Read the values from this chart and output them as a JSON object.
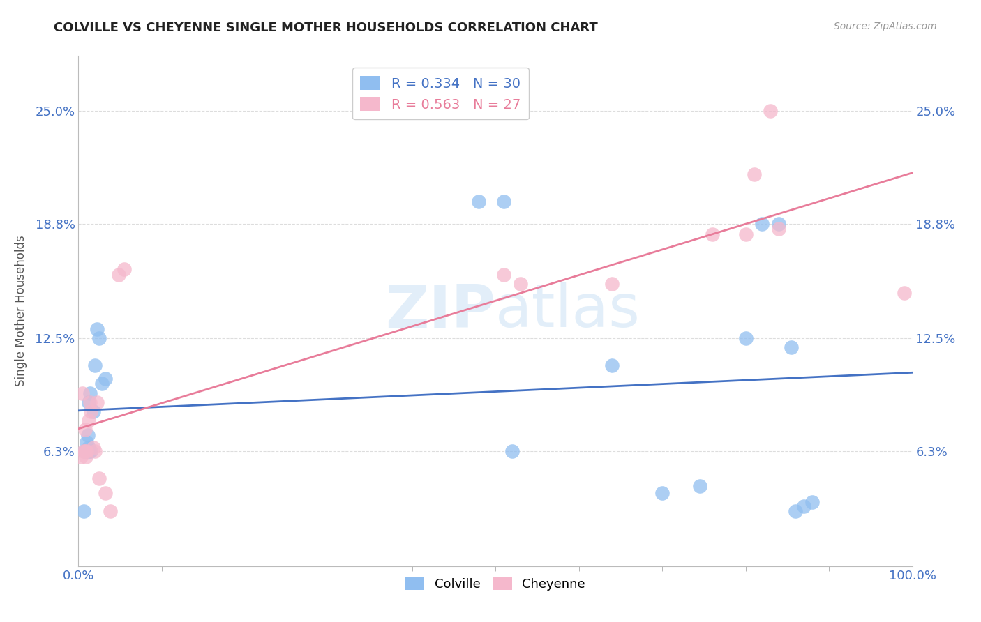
{
  "title": "COLVILLE VS CHEYENNE SINGLE MOTHER HOUSEHOLDS CORRELATION CHART",
  "source": "Source: ZipAtlas.com",
  "ylabel": "Single Mother Households",
  "xlim": [
    0.0,
    1.0
  ],
  "ylim": [
    0.0,
    0.28
  ],
  "y_ticks": [
    0.063,
    0.125,
    0.188,
    0.25
  ],
  "y_tick_labels": [
    "6.3%",
    "12.5%",
    "18.8%",
    "25.0%"
  ],
  "x_tick_labels_left": "0.0%",
  "x_tick_labels_right": "100.0%",
  "colville_R": 0.334,
  "colville_N": 30,
  "cheyenne_R": 0.563,
  "cheyenne_N": 27,
  "colville_color": "#90BEF0",
  "cheyenne_color": "#F5B8CC",
  "colville_line_color": "#4472C4",
  "cheyenne_line_color": "#E87C9A",
  "tick_label_color": "#4472C4",
  "watermark_color": "#D0E4F5",
  "grid_color": "#DDDDDD",
  "background_color": "#FFFFFF",
  "colville_x": [
    0.006,
    0.007,
    0.009,
    0.01,
    0.01,
    0.011,
    0.012,
    0.012,
    0.013,
    0.014,
    0.015,
    0.018,
    0.02,
    0.022,
    0.025,
    0.028,
    0.032,
    0.48,
    0.51,
    0.52,
    0.64,
    0.7,
    0.745,
    0.8,
    0.82,
    0.84,
    0.855,
    0.86,
    0.87,
    0.88
  ],
  "colville_y": [
    0.03,
    0.063,
    0.063,
    0.063,
    0.068,
    0.072,
    0.065,
    0.09,
    0.063,
    0.095,
    0.063,
    0.085,
    0.11,
    0.13,
    0.125,
    0.1,
    0.103,
    0.2,
    0.2,
    0.063,
    0.11,
    0.04,
    0.044,
    0.125,
    0.188,
    0.188,
    0.12,
    0.03,
    0.033,
    0.035
  ],
  "cheyenne_x": [
    0.003,
    0.005,
    0.006,
    0.008,
    0.008,
    0.009,
    0.01,
    0.012,
    0.014,
    0.015,
    0.018,
    0.02,
    0.022,
    0.025,
    0.032,
    0.038,
    0.048,
    0.055,
    0.51,
    0.53,
    0.64,
    0.76,
    0.8,
    0.81,
    0.83,
    0.84,
    0.99
  ],
  "cheyenne_y": [
    0.06,
    0.095,
    0.063,
    0.063,
    0.075,
    0.06,
    0.063,
    0.08,
    0.09,
    0.085,
    0.065,
    0.063,
    0.09,
    0.048,
    0.04,
    0.03,
    0.16,
    0.163,
    0.16,
    0.155,
    0.155,
    0.182,
    0.182,
    0.215,
    0.25,
    0.185,
    0.15
  ]
}
